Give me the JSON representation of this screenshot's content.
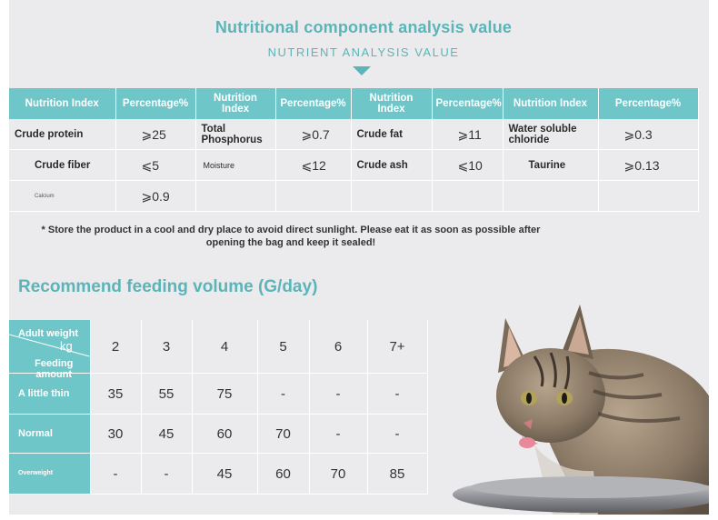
{
  "header": {
    "title": "Nutritional component analysis value",
    "subtitle": "NUTRIENT ANALYSIS VALUE"
  },
  "nutrition_table": {
    "headers": [
      "Nutrition Index",
      "Percentage%",
      "Nutrition Index",
      "Percentage%",
      "Nutrition Index",
      "Percentage%",
      "Nutrition Index",
      "Percentage%"
    ],
    "rows": [
      [
        "Crude protein",
        "⩾25",
        "Total Phosphorus",
        "⩾0.7",
        "Crude fat",
        "⩾11",
        "Water soluble chloride",
        "⩾0.3"
      ],
      [
        "Crude fiber",
        "⩽5",
        "Moisture",
        "⩽12",
        "Crude ash",
        "⩽10",
        "Taurine",
        "⩾0.13"
      ],
      [
        "Calcium",
        "⩾0.9",
        "",
        "",
        "",
        "",
        "",
        ""
      ]
    ]
  },
  "note": "* Store the product in a cool and dry place to avoid direct sunlight. Please eat it as soon as possible after opening the bag and keep it sealed!",
  "feeding": {
    "title": "Recommend feeding volume (G/day)",
    "corner_top": "Adult weight",
    "corner_unit": "kg",
    "corner_bottom": "Feeding amount",
    "weights": [
      "2",
      "3",
      "4",
      "5",
      "6",
      "7+"
    ],
    "rows": [
      {
        "label": "A little thin",
        "values": [
          "35",
          "55",
          "75",
          "-",
          "-",
          "-"
        ]
      },
      {
        "label": "Normal",
        "values": [
          "30",
          "45",
          "60",
          "70",
          "-",
          "-"
        ]
      },
      {
        "label": "Overweight",
        "values": [
          "-",
          "-",
          "45",
          "60",
          "70",
          "85"
        ]
      }
    ]
  },
  "colors": {
    "accent": "#5bb5b8",
    "header_fill": "#6fc6c9",
    "background": "#ebebed"
  }
}
